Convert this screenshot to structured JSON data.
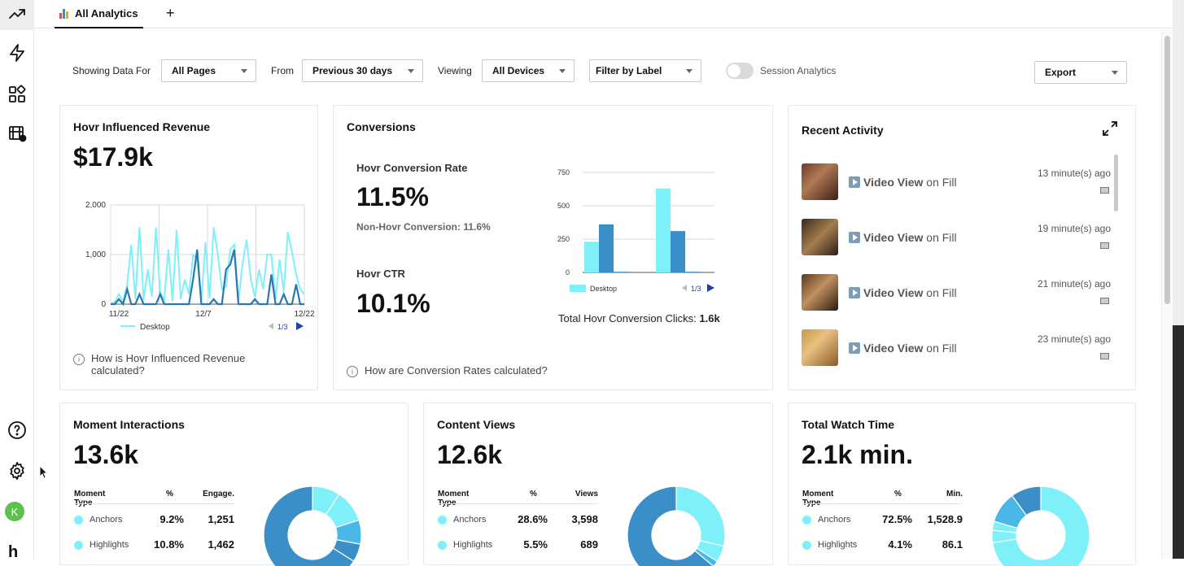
{
  "tabs": [
    {
      "label": "All Analytics"
    }
  ],
  "add_tab_label": "+",
  "filters": {
    "showing_label": "Showing Data For",
    "pages_value": "All Pages",
    "from_label": "From",
    "range_value": "Previous 30 days",
    "viewing_label": "Viewing",
    "devices_value": "All Devices",
    "label_filter": "Filter by Label",
    "session_label": "Session Analytics",
    "session_enabled": false,
    "export_label": "Export"
  },
  "revenue": {
    "title": "Hovr Influenced Revenue",
    "value": "$17.9k",
    "legend": "Desktop",
    "pager": "1/3",
    "help": "How is Hovr Influenced Revenue calculated?"
  },
  "conversions": {
    "title": "Conversions",
    "rate_label": "Hovr Conversion Rate",
    "rate_value": "11.5%",
    "non_hovr": "Non-Hovr Conversion: 11.6%",
    "ctr_label": "Hovr CTR",
    "ctr_value": "10.1%",
    "legend": "Desktop",
    "pager": "1/3",
    "total_label": "Total Hovr Conversion Clicks:",
    "total_value": "1.6k",
    "help": "How are Conversion Rates calculated?"
  },
  "recent": {
    "title": "Recent Activity",
    "items": [
      {
        "action": "Video View",
        "suffix": "on Fill",
        "time": "13 minute(s) ago"
      },
      {
        "action": "Video View",
        "suffix": "on Fill",
        "time": "19 minute(s) ago"
      },
      {
        "action": "Video View",
        "suffix": "on Fill",
        "time": "21 minute(s) ago"
      },
      {
        "action": "Video View",
        "suffix": "on Fill",
        "time": "23 minute(s) ago"
      }
    ]
  },
  "moments": {
    "title": "Moment Interactions",
    "value": "13.6k",
    "headers": [
      "Moment Type",
      "%",
      "Engage."
    ],
    "rows": [
      {
        "name": "Anchors",
        "pct": "9.2%",
        "val": "1,251"
      },
      {
        "name": "Highlights",
        "pct": "10.8%",
        "val": "1,462"
      }
    ]
  },
  "content_views": {
    "title": "Content Views",
    "value": "12.6k",
    "headers": [
      "Moment Type",
      "%",
      "Views"
    ],
    "rows": [
      {
        "name": "Anchors",
        "pct": "28.6%",
        "val": "3,598"
      },
      {
        "name": "Highlights",
        "pct": "5.5%",
        "val": "689"
      }
    ]
  },
  "watch_time": {
    "title": "Total Watch Time",
    "value": "2.1k min.",
    "headers": [
      "Moment Type",
      "%",
      "Min."
    ],
    "rows": [
      {
        "name": "Anchors",
        "pct": "72.5%",
        "val": "1,528.9"
      },
      {
        "name": "Highlights",
        "pct": "4.1%",
        "val": "86.1"
      }
    ]
  },
  "avatar_letter": "K",
  "logo_letter": "h",
  "colors": {
    "light": "#7ef0fa",
    "mid": "#4ab8e6",
    "dark": "#3a8fc8",
    "darker": "#2b78b0"
  },
  "chart_data": [
    {
      "type": "line",
      "x_ticks": [
        "11/22",
        "12/7",
        "12/22"
      ],
      "y_ticks": [
        "0",
        "1,000",
        "2,000"
      ],
      "ylim": [
        0,
        2000
      ],
      "series": [
        {
          "name": "Desktop",
          "values": [
            0,
            50,
            200,
            50,
            400,
            1200,
            100,
            1550,
            80,
            700,
            150,
            1550,
            250,
            80,
            1100,
            60,
            1500,
            100,
            500,
            200,
            1000,
            900,
            60,
            1250,
            120,
            1550,
            1000,
            300,
            350,
            1100,
            1200,
            60,
            800,
            1300,
            500,
            150,
            700,
            300,
            1000,
            1000,
            100,
            900,
            250,
            1450,
            1050,
            600,
            300,
            200
          ]
        },
        {
          "values": [
            0,
            0,
            100,
            0,
            300,
            0,
            0,
            200,
            0,
            0,
            0,
            0,
            200,
            0,
            0,
            0,
            0,
            0,
            0,
            0,
            500,
            1100,
            0,
            0,
            0,
            100,
            0,
            0,
            700,
            800,
            1100,
            0,
            0,
            0,
            0,
            100,
            0,
            0,
            0,
            600,
            0,
            0,
            200,
            0,
            0,
            400,
            0,
            0
          ]
        }
      ]
    },
    {
      "type": "bar",
      "y_ticks": [
        "0",
        "250",
        "500",
        "750"
      ],
      "ylim": [
        0,
        750
      ],
      "groups": [
        {
          "values": [
            230,
            360,
            5
          ]
        },
        {
          "values": [
            630,
            310,
            5
          ]
        }
      ],
      "series": [
        {
          "name": "Desktop"
        }
      ]
    },
    {
      "type": "pie",
      "title": "Moment Interactions",
      "slices": [
        {
          "label": "Anchors",
          "value": 9.2
        },
        {
          "label": "Highlights",
          "value": 10.8
        },
        {
          "value": 8.0
        },
        {
          "value": 6.0
        },
        {
          "value": 66.0
        }
      ]
    },
    {
      "type": "pie",
      "title": "Content Views",
      "slices": [
        {
          "label": "Anchors",
          "value": 28.6
        },
        {
          "label": "Highlights",
          "value": 5.5
        },
        {
          "value": 2.0
        },
        {
          "value": 63.9
        }
      ]
    },
    {
      "type": "pie",
      "title": "Total Watch Time",
      "slices": [
        {
          "label": "Anchors",
          "value": 72.5
        },
        {
          "label": "Highlights",
          "value": 4.1
        },
        {
          "value": 3.0
        },
        {
          "value": 10.4
        },
        {
          "value": 10.0
        }
      ]
    }
  ]
}
